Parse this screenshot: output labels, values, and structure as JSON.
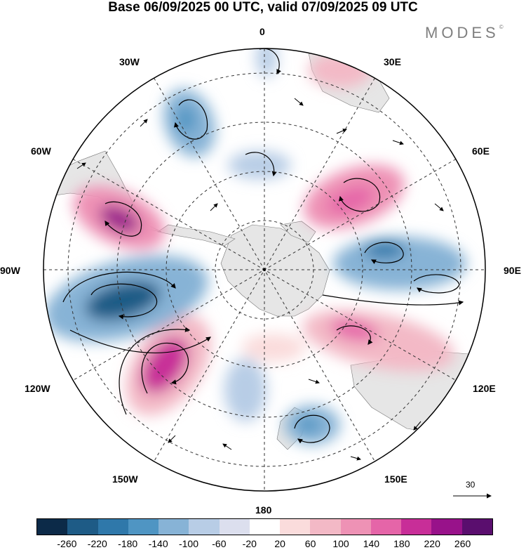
{
  "title": "Base 06/09/2025 00 UTC, valid 07/09/2025 09 UTC",
  "brand": "MODES",
  "brand_mark": "©",
  "longitude_labels": {
    "lon_0": "0",
    "lon_30e": "30E",
    "lon_60e": "60E",
    "lon_90e": "90E",
    "lon_120e": "120E",
    "lon_150e": "150E",
    "lon_180": "180",
    "lon_150w": "150W",
    "lon_120w": "120W",
    "lon_90w": "90W",
    "lon_60w": "60W",
    "lon_30w": "30W"
  },
  "vector_scale": {
    "label": "30"
  },
  "colorbar": {
    "colors": [
      "#0c2a48",
      "#1e5b86",
      "#2f78aa",
      "#4f95c3",
      "#87b3d6",
      "#b8cde6",
      "#dcdfee",
      "#ffffff",
      "#fadcdc",
      "#f3b9c6",
      "#ee92b5",
      "#e565a8",
      "#c82e98",
      "#98128a",
      "#5a0e6e"
    ],
    "ticks": [
      "-260",
      "-220",
      "-180",
      "-140",
      "-100",
      "-60",
      "-20",
      "20",
      "60",
      "100",
      "140",
      "180",
      "220",
      "260"
    ]
  },
  "colors": {
    "ocean": "#ffffff",
    "land": "#e6e6e6",
    "grid": "#333333"
  }
}
